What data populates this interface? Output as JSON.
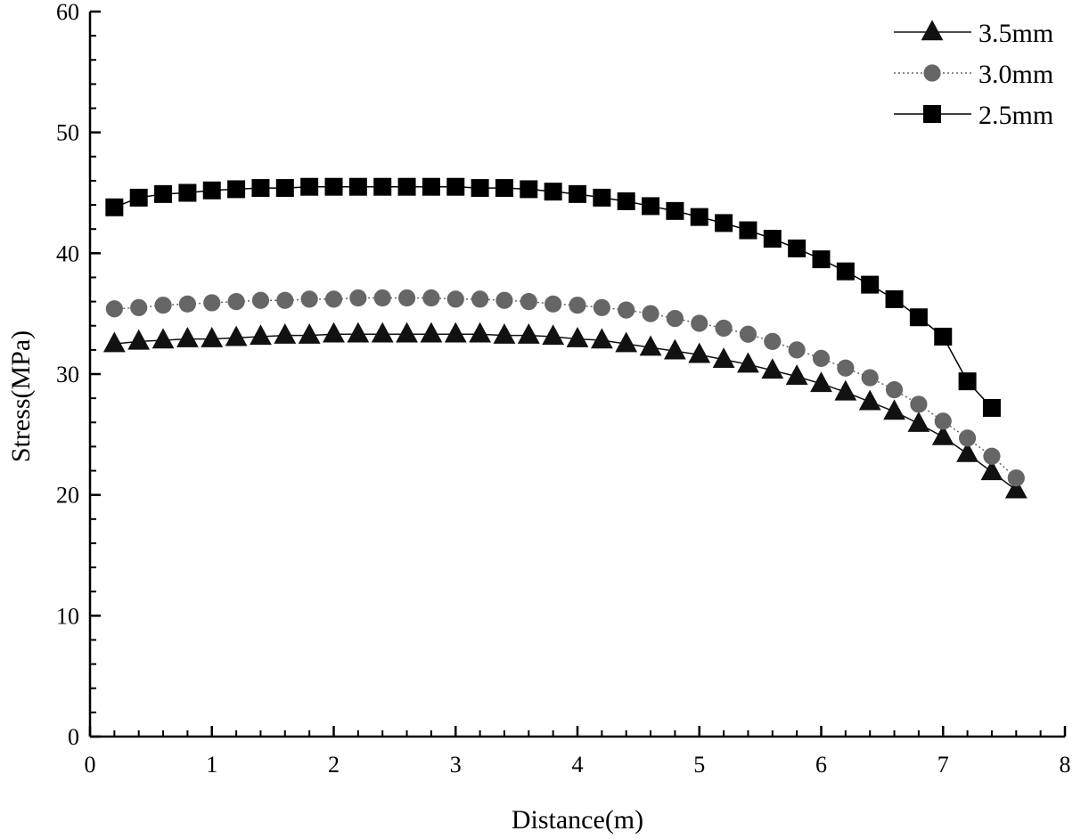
{
  "chart_data": {
    "type": "line",
    "xlabel": "Distance(m)",
    "ylabel": "Stress(MPa)",
    "xlim": [
      0,
      8
    ],
    "ylim": [
      0,
      60
    ],
    "x_ticks": [
      0,
      1,
      2,
      3,
      4,
      5,
      6,
      7,
      8
    ],
    "y_ticks": [
      0,
      10,
      20,
      30,
      40,
      50,
      60
    ],
    "grid": false,
    "legend_position": "top-right",
    "series": [
      {
        "name": "3.5mm",
        "marker": "triangle",
        "color": "#111111",
        "line_style": "solid",
        "x": [
          0.2,
          0.4,
          0.6,
          0.8,
          1.0,
          1.2,
          1.4,
          1.6,
          1.8,
          2.0,
          2.2,
          2.4,
          2.6,
          2.8,
          3.0,
          3.2,
          3.4,
          3.6,
          3.8,
          4.0,
          4.2,
          4.4,
          4.6,
          4.8,
          5.0,
          5.2,
          5.4,
          5.6,
          5.8,
          6.0,
          6.2,
          6.4,
          6.6,
          6.8,
          7.0,
          7.2,
          7.4,
          7.6
        ],
        "y": [
          32.5,
          32.7,
          32.8,
          32.9,
          32.9,
          33.0,
          33.1,
          33.2,
          33.2,
          33.3,
          33.3,
          33.3,
          33.3,
          33.3,
          33.3,
          33.3,
          33.2,
          33.2,
          33.1,
          32.9,
          32.8,
          32.5,
          32.2,
          31.9,
          31.6,
          31.2,
          30.8,
          30.3,
          29.8,
          29.2,
          28.5,
          27.7,
          26.9,
          25.9,
          24.8,
          23.4,
          21.9,
          20.4
        ]
      },
      {
        "name": "3.0mm",
        "marker": "circle",
        "color": "#666666",
        "line_style": "dotted",
        "x": [
          0.2,
          0.4,
          0.6,
          0.8,
          1.0,
          1.2,
          1.4,
          1.6,
          1.8,
          2.0,
          2.2,
          2.4,
          2.6,
          2.8,
          3.0,
          3.2,
          3.4,
          3.6,
          3.8,
          4.0,
          4.2,
          4.4,
          4.6,
          4.8,
          5.0,
          5.2,
          5.4,
          5.6,
          5.8,
          6.0,
          6.2,
          6.4,
          6.6,
          6.8,
          7.0,
          7.2,
          7.4,
          7.6
        ],
        "y": [
          35.4,
          35.5,
          35.7,
          35.8,
          35.9,
          36.0,
          36.1,
          36.1,
          36.2,
          36.2,
          36.3,
          36.3,
          36.3,
          36.3,
          36.2,
          36.2,
          36.1,
          36.0,
          35.8,
          35.7,
          35.5,
          35.3,
          35.0,
          34.6,
          34.2,
          33.8,
          33.3,
          32.7,
          32.0,
          31.3,
          30.5,
          29.7,
          28.7,
          27.5,
          26.1,
          24.7,
          23.2,
          21.4
        ]
      },
      {
        "name": "2.5mm",
        "marker": "square",
        "color": "#000000",
        "line_style": "solid",
        "x": [
          0.2,
          0.4,
          0.6,
          0.8,
          1.0,
          1.2,
          1.4,
          1.6,
          1.8,
          2.0,
          2.2,
          2.4,
          2.6,
          2.8,
          3.0,
          3.2,
          3.4,
          3.6,
          3.8,
          4.0,
          4.2,
          4.4,
          4.6,
          4.8,
          5.0,
          5.2,
          5.4,
          5.6,
          5.8,
          6.0,
          6.2,
          6.4,
          6.6,
          6.8,
          7.0,
          7.2,
          7.4
        ],
        "y": [
          43.8,
          44.6,
          44.9,
          45.0,
          45.2,
          45.3,
          45.4,
          45.4,
          45.5,
          45.5,
          45.5,
          45.5,
          45.5,
          45.5,
          45.5,
          45.4,
          45.4,
          45.3,
          45.1,
          44.9,
          44.6,
          44.3,
          43.9,
          43.5,
          43.0,
          42.5,
          41.9,
          41.2,
          40.4,
          39.5,
          38.5,
          37.4,
          36.2,
          34.7,
          33.1,
          29.4,
          27.2
        ]
      }
    ]
  }
}
